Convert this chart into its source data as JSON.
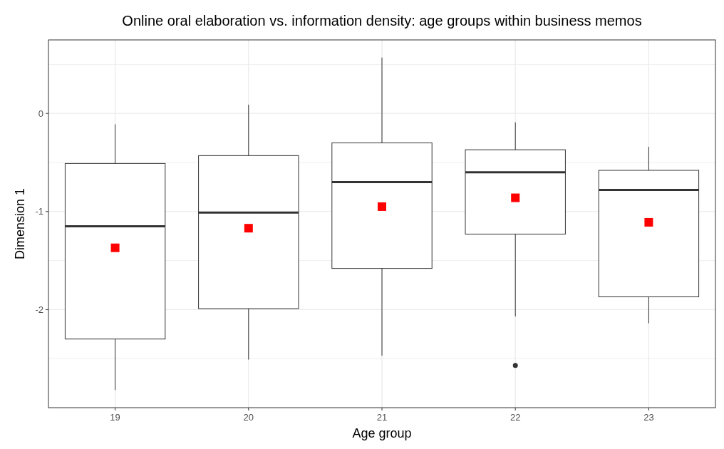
{
  "chart_data": {
    "type": "box",
    "title": "Online oral elaboration vs. information density: age groups within business memos",
    "xlabel": "Age group",
    "ylabel": "Dimension 1",
    "categories": [
      "19",
      "20",
      "21",
      "22",
      "23"
    ],
    "ylim": [
      -3,
      0.75
    ],
    "yticks": [
      {
        "value": -2.5,
        "label": null
      },
      -2,
      {
        "value": -1.5,
        "label": null
      },
      -1,
      {
        "value": -0.5,
        "label": null
      },
      0,
      {
        "value": 0.5,
        "label": null
      }
    ],
    "grid": true,
    "boxes": [
      {
        "low": -2.82,
        "q1": -2.3,
        "median": -1.15,
        "q3": -0.51,
        "high": -0.11
      },
      {
        "low": -2.51,
        "q1": -1.99,
        "median": -1.01,
        "q3": -0.43,
        "high": 0.09
      },
      {
        "low": -2.47,
        "q1": -1.58,
        "median": -0.7,
        "q3": -0.3,
        "high": 0.57
      },
      {
        "low": -2.07,
        "q1": -1.23,
        "median": -0.6,
        "q3": -0.37,
        "high": -0.09,
        "outliers": [
          -2.57
        ]
      },
      {
        "low": -2.14,
        "q1": -1.87,
        "median": -0.78,
        "q3": -0.58,
        "high": -0.34
      }
    ],
    "series": [
      {
        "type": "scatter",
        "color": "#ff0000",
        "marker": "square",
        "x": [
          "19",
          "20",
          "21",
          "22",
          "23"
        ],
        "values": [
          -1.37,
          -1.17,
          -0.95,
          -0.86,
          -1.11
        ]
      }
    ]
  }
}
